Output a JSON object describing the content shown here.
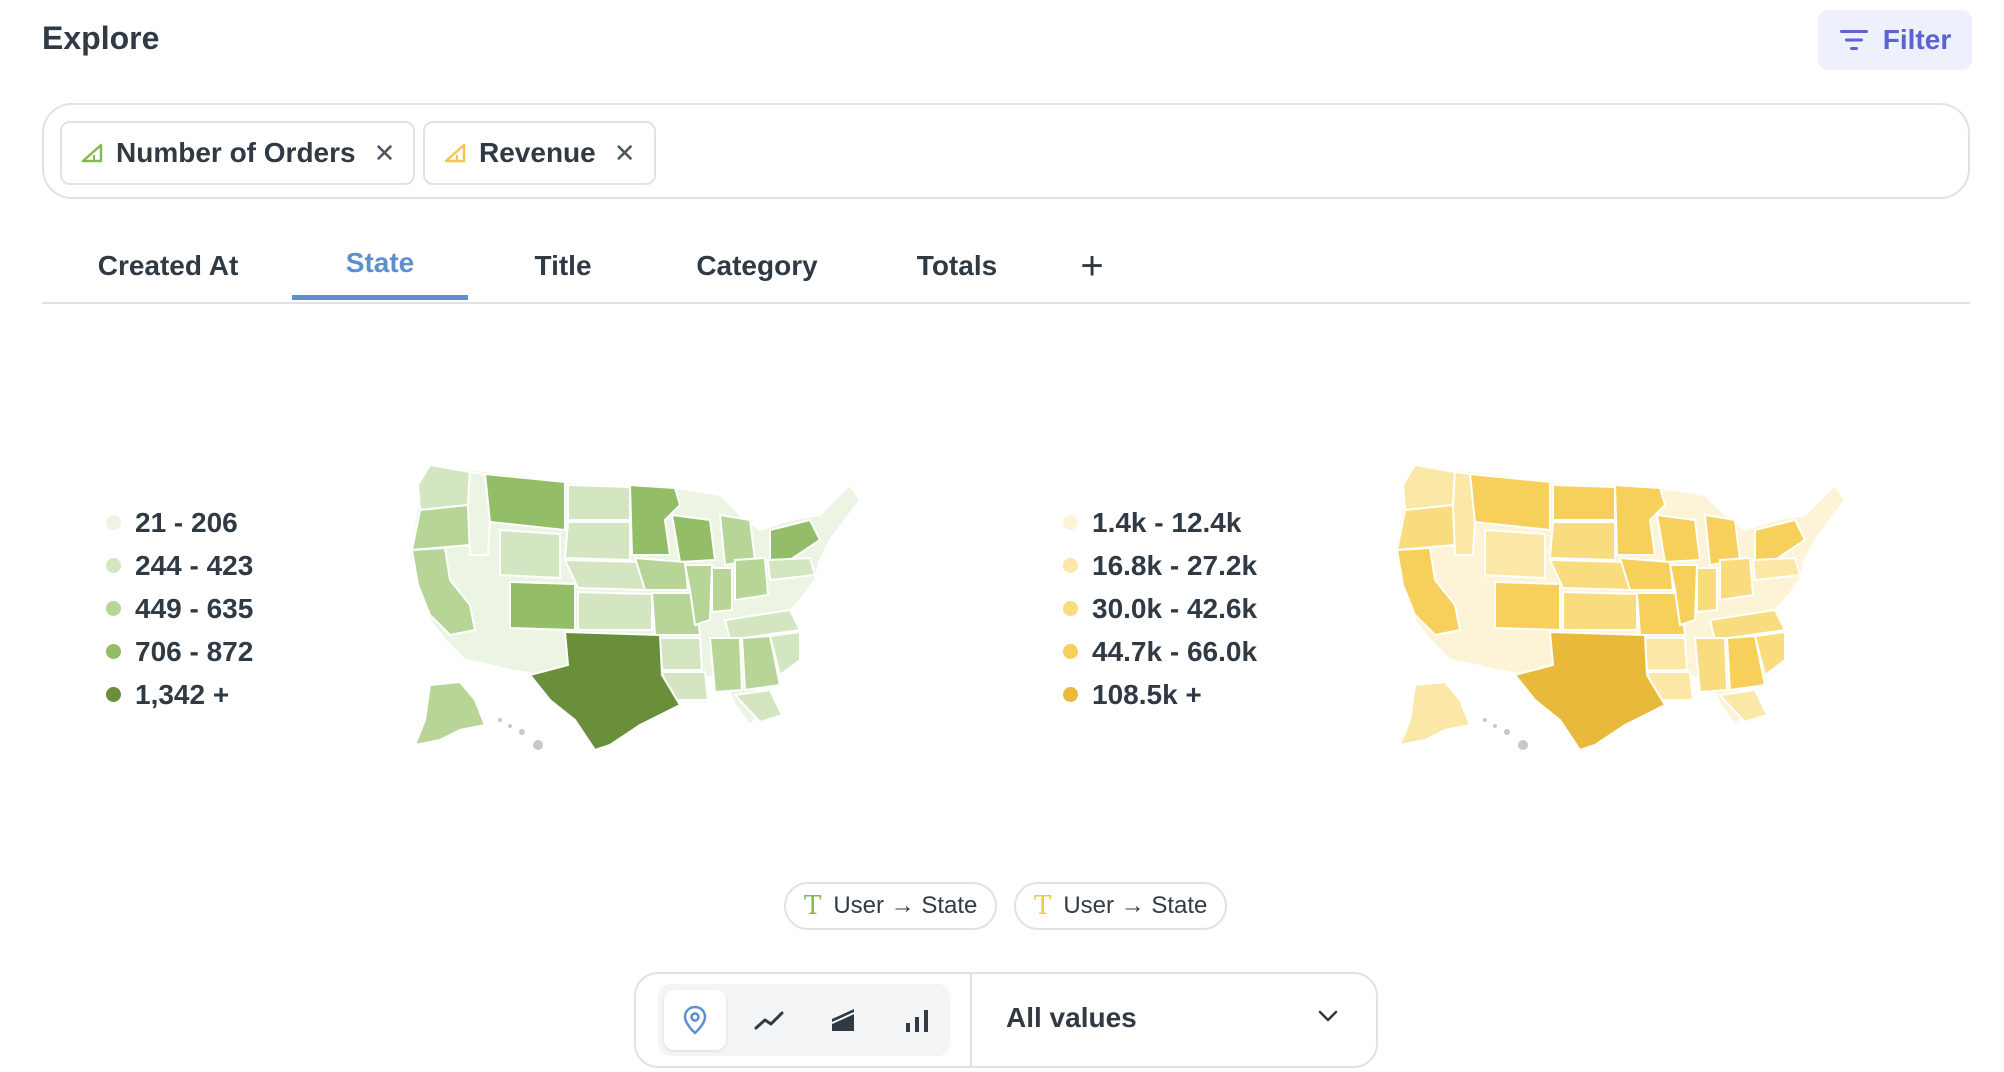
{
  "header": {
    "title": "Explore",
    "filter_label": "Filter"
  },
  "metrics": [
    {
      "label": "Number of Orders",
      "icon": "metric-triangle-icon",
      "color": "#84bb4c"
    },
    {
      "label": "Revenue",
      "icon": "metric-triangle-icon",
      "color": "#f2c84b"
    }
  ],
  "tabs": [
    {
      "label": "Created At",
      "active": false
    },
    {
      "label": "State",
      "active": true
    },
    {
      "label": "Title",
      "active": false
    },
    {
      "label": "Category",
      "active": false
    },
    {
      "label": "Totals",
      "active": false
    }
  ],
  "add_tab_label": "+",
  "maps": [
    {
      "metric": "Number of Orders",
      "legend": [
        {
          "label": "21 - 206",
          "color": "#ecf4e4"
        },
        {
          "label": "244 - 423",
          "color": "#d4e6c1"
        },
        {
          "label": "449 - 635",
          "color": "#b7d597"
        },
        {
          "label": "706 - 872",
          "color": "#93bd66"
        },
        {
          "label": "1,342 +",
          "color": "#6a8f3b"
        }
      ]
    },
    {
      "metric": "Revenue",
      "legend": [
        {
          "label": "1.4k - 12.4k",
          "color": "#fdf4d8"
        },
        {
          "label": "16.8k - 27.2k",
          "color": "#fbe7a6"
        },
        {
          "label": "30.0k - 42.6k",
          "color": "#f8dc7d"
        },
        {
          "label": "44.7k - 66.0k",
          "color": "#f6d05a"
        },
        {
          "label": "108.5k +",
          "color": "#e8b93a"
        }
      ]
    }
  ],
  "dimension_pills": [
    {
      "label": "User → State",
      "icon": "text-type-icon",
      "color": "#84bb4c"
    },
    {
      "label": "User → State",
      "icon": "text-type-icon",
      "color": "#f2c84b"
    }
  ],
  "viz_types": [
    {
      "name": "map",
      "icon": "pin-icon",
      "active": true
    },
    {
      "name": "line",
      "icon": "line-chart-icon",
      "active": false
    },
    {
      "name": "area",
      "icon": "area-chart-icon",
      "active": false
    },
    {
      "name": "bar",
      "icon": "bar-chart-icon",
      "active": false
    }
  ],
  "values_select": "All values",
  "colors": {
    "accent": "#5b8fcf",
    "filter": "#5a63cf"
  }
}
